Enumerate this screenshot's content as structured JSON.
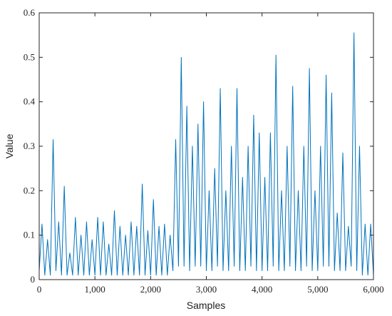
{
  "chart_data": {
    "type": "line",
    "x_label": "Samples",
    "y_label": "Value",
    "x": [
      0,
      50,
      100,
      150,
      200,
      250,
      300,
      350,
      400,
      450,
      500,
      550,
      600,
      650,
      700,
      750,
      800,
      850,
      900,
      950,
      1000,
      1050,
      1100,
      1150,
      1200,
      1250,
      1300,
      1350,
      1400,
      1450,
      1500,
      1550,
      1600,
      1650,
      1700,
      1750,
      1800,
      1850,
      1900,
      1950,
      2000,
      2050,
      2100,
      2150,
      2200,
      2250,
      2300,
      2350,
      2400,
      2450,
      2500,
      2550,
      2600,
      2650,
      2700,
      2750,
      2800,
      2850,
      2900,
      2950,
      3000,
      3050,
      3100,
      3150,
      3200,
      3250,
      3300,
      3350,
      3400,
      3450,
      3500,
      3550,
      3600,
      3650,
      3700,
      3750,
      3800,
      3850,
      3900,
      3950,
      4000,
      4050,
      4100,
      4150,
      4200,
      4250,
      4300,
      4350,
      4400,
      4450,
      4500,
      4550,
      4600,
      4650,
      4700,
      4750,
      4800,
      4850,
      4900,
      4950,
      5000,
      5050,
      5100,
      5150,
      5200,
      5250,
      5300,
      5350,
      5400,
      5450,
      5500,
      5550,
      5600,
      5650,
      5700,
      5750,
      5800,
      5850,
      5900,
      5950,
      6000
    ],
    "series": [
      {
        "color": "#0072bd",
        "values": [
          0.02,
          0.125,
          0.01,
          0.09,
          0.01,
          0.315,
          0.02,
          0.13,
          0.01,
          0.21,
          0.01,
          0.06,
          0.01,
          0.14,
          0.01,
          0.1,
          0.01,
          0.13,
          0.01,
          0.09,
          0.01,
          0.14,
          0.01,
          0.13,
          0.01,
          0.08,
          0.01,
          0.155,
          0.01,
          0.12,
          0.01,
          0.1,
          0.01,
          0.13,
          0.01,
          0.12,
          0.01,
          0.215,
          0.01,
          0.11,
          0.01,
          0.18,
          0.01,
          0.12,
          0.01,
          0.125,
          0.01,
          0.1,
          0.02,
          0.315,
          0.03,
          0.5,
          0.03,
          0.39,
          0.02,
          0.3,
          0.03,
          0.35,
          0.03,
          0.4,
          0.02,
          0.2,
          0.02,
          0.25,
          0.03,
          0.43,
          0.02,
          0.2,
          0.02,
          0.3,
          0.03,
          0.43,
          0.02,
          0.23,
          0.02,
          0.3,
          0.03,
          0.37,
          0.02,
          0.33,
          0.02,
          0.23,
          0.02,
          0.33,
          0.03,
          0.505,
          0.02,
          0.2,
          0.02,
          0.3,
          0.03,
          0.435,
          0.02,
          0.2,
          0.02,
          0.3,
          0.03,
          0.475,
          0.02,
          0.2,
          0.02,
          0.3,
          0.03,
          0.46,
          0.03,
          0.42,
          0.02,
          0.15,
          0.02,
          0.285,
          0.02,
          0.12,
          0.03,
          0.555,
          0.02,
          0.3,
          0.01,
          0.125,
          0.01,
          0.125,
          0.01
        ]
      }
    ],
    "xlim": [
      0,
      6000
    ],
    "xticks": [
      0,
      {
        "value": 1000,
        "label": "1,000"
      },
      {
        "value": 2000,
        "label": "2,000"
      },
      {
        "value": 3000,
        "label": "3,000"
      },
      {
        "value": 4000,
        "label": "4,000"
      },
      {
        "value": 5000,
        "label": "5,000"
      },
      {
        "value": 6000,
        "label": "6,000"
      }
    ],
    "ylim": [
      0,
      0.6
    ],
    "yticks": [
      0,
      0.1,
      0.2,
      0.3,
      0.4,
      0.5,
      0.6
    ]
  }
}
